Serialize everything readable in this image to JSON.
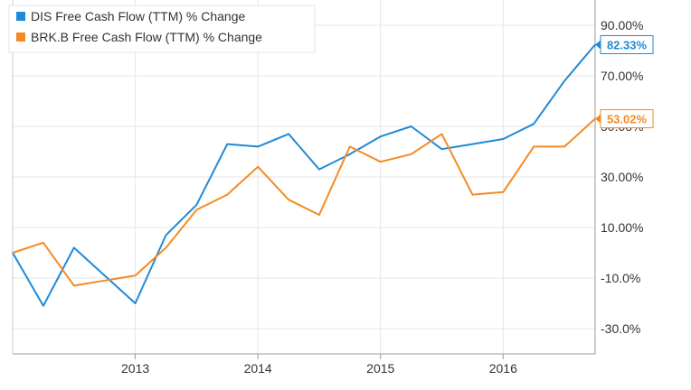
{
  "chart_data": {
    "type": "line",
    "title": "",
    "xlabel": "",
    "ylabel": "",
    "x_ticks": [
      "2013",
      "2014",
      "2015",
      "2016"
    ],
    "y_ticks": [
      "90.00%",
      "70.00%",
      "50.00%",
      "30.00%",
      "10.00%",
      "-10.0%",
      "-30.0%"
    ],
    "ylim": [
      -40,
      100
    ],
    "xlim": [
      2012.0,
      2016.75
    ],
    "grid": true,
    "legend_position": "top-left",
    "series": [
      {
        "name": "DIS Free Cash Flow (TTM) % Change",
        "color": "#1f8ad7",
        "end_label": "82.33%",
        "x": [
          2012.0,
          2012.25,
          2012.5,
          2012.75,
          2013.0,
          2013.25,
          2013.5,
          2013.75,
          2014.0,
          2014.25,
          2014.5,
          2014.75,
          2015.0,
          2015.25,
          2015.5,
          2015.75,
          2016.0,
          2016.25,
          2016.5,
          2016.75
        ],
        "y": [
          0,
          -21,
          2,
          -9,
          -20,
          7,
          19,
          43,
          42,
          47,
          33,
          39,
          46,
          50,
          41,
          43,
          45,
          51,
          68,
          82.33
        ]
      },
      {
        "name": "BRK.B Free Cash Flow (TTM) % Change",
        "color": "#f58a23",
        "end_label": "53.02%",
        "x": [
          2012.0,
          2012.25,
          2012.5,
          2012.75,
          2013.0,
          2013.25,
          2013.5,
          2013.75,
          2014.0,
          2014.25,
          2014.5,
          2014.75,
          2015.0,
          2015.25,
          2015.5,
          2015.75,
          2016.0,
          2016.25,
          2016.5,
          2016.75
        ],
        "y": [
          0,
          4,
          -13,
          -11,
          -9,
          2,
          17,
          23,
          34,
          21,
          15,
          42,
          36,
          39,
          47,
          23,
          24,
          42,
          42,
          53.02
        ]
      }
    ]
  }
}
